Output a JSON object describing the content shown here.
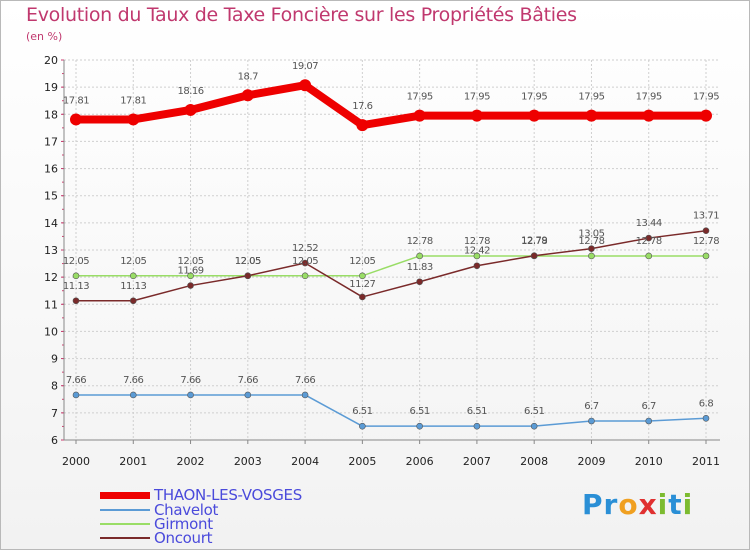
{
  "title": "Evolution du Taux de Taxe Foncière sur les Propriétés Bâties",
  "unit_label": "(en %)",
  "chart_data": {
    "type": "line",
    "title": "Evolution du Taux de Taxe Foncière sur les Propriétés Bâties",
    "ylabel": "(en %)",
    "xlabel": "",
    "categories": [
      "2000",
      "2001",
      "2002",
      "2003",
      "2004",
      "2005",
      "2006",
      "2007",
      "2008",
      "2009",
      "2010",
      "2011"
    ],
    "ylim": [
      6,
      20
    ],
    "yticks": [
      6,
      7,
      8,
      9,
      10,
      11,
      12,
      13,
      14,
      15,
      16,
      17,
      18,
      19,
      20
    ],
    "grid": true,
    "series": [
      {
        "name": "THAON-LES-VOSGES",
        "color": "#ee0000",
        "values": [
          17.81,
          17.81,
          18.16,
          18.7,
          19.07,
          17.6,
          17.95,
          17.95,
          17.95,
          17.95,
          17.95,
          17.95
        ],
        "labels": [
          "17.81",
          "17.81",
          "18.16",
          "18.7",
          "19.07",
          "17.6",
          "17.95",
          "17.95",
          "17.95",
          "17.95",
          "17.95",
          "17.95"
        ]
      },
      {
        "name": "Chavelot",
        "color": "#5b9bd5",
        "values": [
          7.66,
          7.66,
          7.66,
          7.66,
          7.66,
          6.51,
          6.51,
          6.51,
          6.51,
          6.7,
          6.7,
          6.8
        ],
        "labels": [
          "7.66",
          "7.66",
          "7.66",
          "7.66",
          "7.66",
          "6.51",
          "6.51",
          "6.51",
          "6.51",
          "6.7",
          "6.7",
          "6.8"
        ]
      },
      {
        "name": "Girmont",
        "color": "#99dd66",
        "values": [
          12.05,
          12.05,
          12.05,
          12.05,
          12.05,
          12.05,
          12.78,
          12.78,
          12.78,
          12.78,
          12.78,
          12.78
        ],
        "labels": [
          "12.05",
          "12.05",
          "12.05",
          "12.05",
          "12.05",
          "12.05",
          "12.78",
          "12.78",
          "12.78",
          "12.78",
          "12.78",
          "12.78"
        ]
      },
      {
        "name": "Oncourt",
        "color": "#7a2a2a",
        "values": [
          11.13,
          11.13,
          11.69,
          12.05,
          12.52,
          11.27,
          11.83,
          12.42,
          12.79,
          13.05,
          13.44,
          13.71
        ],
        "labels": [
          "11.13",
          "11.13",
          "11.69",
          "12.05",
          "12.52",
          "11.27",
          "11.83",
          "12.42",
          "12.79",
          "13.05",
          "13.44",
          "13.71"
        ]
      }
    ],
    "legend": [
      "THAON-LES-VOSGES",
      "Chavelot",
      "Girmont",
      "Oncourt"
    ]
  },
  "logo": {
    "letters": [
      "P",
      "r",
      "o",
      "x",
      "i",
      "t",
      "i"
    ],
    "colors": [
      "#2a8fd6",
      "#2a8fd6",
      "#f0a020",
      "#e03030",
      "#7cbb30",
      "#2a8fd6",
      "#7cbb30"
    ]
  }
}
